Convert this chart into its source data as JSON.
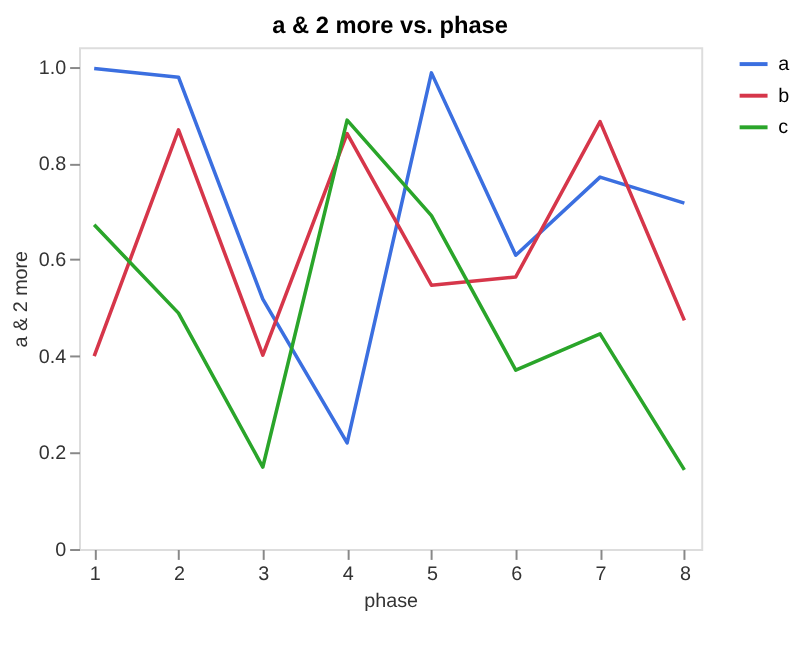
{
  "chart_data": {
    "type": "line",
    "title": "a & 2 more vs. phase",
    "xlabel": "phase",
    "ylabel": "a & 2 more",
    "x": [
      1,
      2,
      3,
      4,
      5,
      6,
      7,
      8
    ],
    "series": [
      {
        "name": "a",
        "color": "#3b6fe0",
        "values": [
          0.996,
          0.978,
          0.518,
          0.22,
          0.987,
          0.609,
          0.771,
          0.717
        ]
      },
      {
        "name": "b",
        "color": "#d6364a",
        "values": [
          0.4,
          0.869,
          0.402,
          0.861,
          0.547,
          0.564,
          0.886,
          0.474
        ]
      },
      {
        "name": "c",
        "color": "#2aa52a",
        "values": [
          0.672,
          0.489,
          0.17,
          0.889,
          0.691,
          0.371,
          0.446,
          0.164
        ]
      }
    ],
    "xlim": [
      0.82,
      8.2
    ],
    "xticks": [
      1,
      2,
      3,
      4,
      5,
      6,
      7,
      8
    ],
    "ylim": [
      0,
      1.04
    ],
    "yticks": [
      0,
      0.2,
      0.4,
      0.6,
      0.8,
      {
        "value": 1,
        "label": "1.0"
      }
    ],
    "grid": false,
    "legend": "top right",
    "marker": "none",
    "line_style": "solid"
  }
}
